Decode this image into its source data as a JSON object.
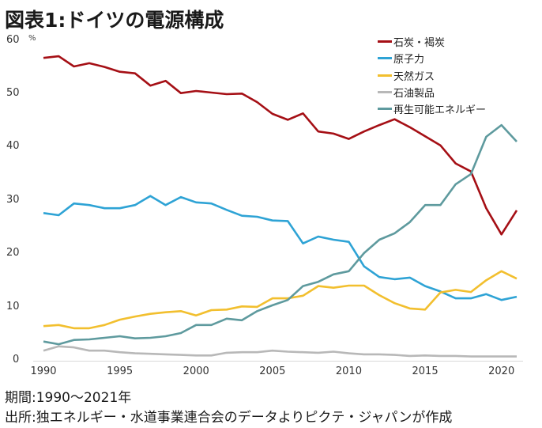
{
  "chart_data": {
    "type": "line",
    "title": "図表1:ドイツの電源構成",
    "ylabel": "%",
    "xlabel": "",
    "ylim": [
      0,
      60
    ],
    "xlim": [
      1990,
      2021
    ],
    "yticks": [
      "0",
      "10",
      "20",
      "30",
      "40",
      "50",
      "60"
    ],
    "xticks": [
      "1990",
      "1995",
      "2000",
      "2005",
      "2010",
      "2015",
      "2020"
    ],
    "grid": false,
    "legend_position": "top-right",
    "x": [
      1990,
      1991,
      1992,
      1993,
      1994,
      1995,
      1996,
      1997,
      1998,
      1999,
      2000,
      2001,
      2002,
      2003,
      2004,
      2005,
      2006,
      2007,
      2008,
      2009,
      2010,
      2011,
      2012,
      2013,
      2014,
      2015,
      2016,
      2017,
      2018,
      2019,
      2020,
      2021
    ],
    "series": [
      {
        "name": "石炭・褐炭",
        "color": "#a50f15",
        "values": [
          56.8,
          57.1,
          55.2,
          55.8,
          55.1,
          54.2,
          53.9,
          51.6,
          52.5,
          50.2,
          50.6,
          50.3,
          50.0,
          50.1,
          48.5,
          46.3,
          45.2,
          46.4,
          43.0,
          42.6,
          41.6,
          43.0,
          44.2,
          45.3,
          43.8,
          42.1,
          40.4,
          37.0,
          35.5,
          28.6,
          23.7,
          28.2
        ]
      },
      {
        "name": "原子力",
        "color": "#2ea3d5",
        "values": [
          27.7,
          27.3,
          29.5,
          29.2,
          28.6,
          28.6,
          29.2,
          30.9,
          29.2,
          30.7,
          29.7,
          29.5,
          28.3,
          27.2,
          27.0,
          26.3,
          26.2,
          22.0,
          23.3,
          22.7,
          22.3,
          17.7,
          15.7,
          15.3,
          15.6,
          14.0,
          13.0,
          11.7,
          11.7,
          12.5,
          11.4,
          12.0
        ]
      },
      {
        "name": "天然ガス",
        "color": "#f2bf2e",
        "values": [
          6.5,
          6.7,
          6.1,
          6.1,
          6.7,
          7.7,
          8.3,
          8.8,
          9.1,
          9.3,
          8.5,
          9.5,
          9.6,
          10.2,
          10.1,
          11.7,
          11.7,
          12.2,
          14.0,
          13.7,
          14.1,
          14.1,
          12.3,
          10.8,
          9.8,
          9.6,
          12.8,
          13.3,
          12.9,
          15.1,
          16.8,
          15.4
        ]
      },
      {
        "name": "石油製品",
        "color": "#b8b8b8",
        "values": [
          1.9,
          2.7,
          2.5,
          1.9,
          1.9,
          1.6,
          1.4,
          1.3,
          1.2,
          1.1,
          1.0,
          1.0,
          1.5,
          1.6,
          1.6,
          1.9,
          1.7,
          1.6,
          1.5,
          1.7,
          1.4,
          1.2,
          1.2,
          1.1,
          0.9,
          1.0,
          0.9,
          0.9,
          0.8,
          0.8,
          0.8,
          0.8
        ]
      },
      {
        "name": "再生可能エネルギー",
        "color": "#5e9a9e",
        "values": [
          3.6,
          3.1,
          3.9,
          4.0,
          4.3,
          4.6,
          4.2,
          4.3,
          4.6,
          5.2,
          6.7,
          6.7,
          7.9,
          7.6,
          9.3,
          10.4,
          11.4,
          14.0,
          14.8,
          16.2,
          16.8,
          20.2,
          22.7,
          23.9,
          26.0,
          29.2,
          29.2,
          33.1,
          35.0,
          42.0,
          44.2,
          41.1
        ]
      }
    ]
  },
  "footer": {
    "period": "期間:1990～2021年",
    "source": "出所:独エネルギー・水道事業連合会のデータよりピクテ・ジャパンが作成"
  }
}
